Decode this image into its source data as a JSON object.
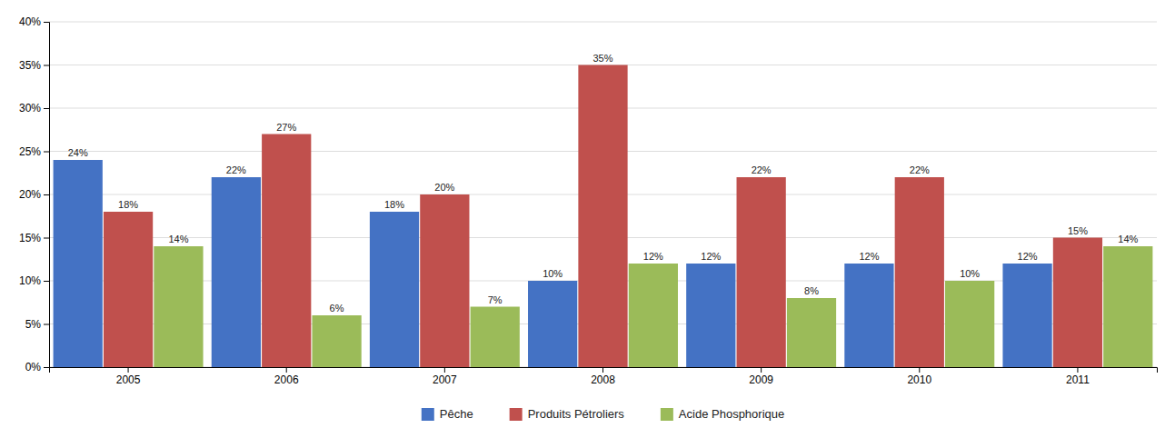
{
  "chart_data": {
    "type": "bar",
    "categories": [
      "2005",
      "2006",
      "2007",
      "2008",
      "2009",
      "2010",
      "2011"
    ],
    "series": [
      {
        "name": "Pêche",
        "color": "#4472C4",
        "values": [
          24,
          22,
          18,
          10,
          12,
          12,
          12
        ],
        "value_labels": [
          "24%",
          "22%",
          "18%",
          "10%",
          "12%",
          "12%",
          "12%"
        ]
      },
      {
        "name": "Produits Pétroliers",
        "color": "#C0504D",
        "values": [
          18,
          27,
          20,
          35,
          22,
          22,
          15
        ],
        "value_labels": [
          "18%",
          "27%",
          "20%",
          "35%",
          "22%",
          "22%",
          "15%"
        ]
      },
      {
        "name": "Acide Phosphorique",
        "color": "#9BBB59",
        "values": [
          14,
          6,
          7,
          12,
          8,
          10,
          14
        ],
        "value_labels": [
          "14%",
          "6%",
          "7%",
          "12%",
          "8%",
          "10%",
          "14%"
        ]
      }
    ],
    "ylim": [
      0,
      40
    ],
    "yticks": [
      {
        "value": 0,
        "label": "0%"
      },
      {
        "value": 5,
        "label": "5%"
      },
      {
        "value": 10,
        "label": "10%"
      },
      {
        "value": 15,
        "label": "15%"
      },
      {
        "value": 20,
        "label": "20%"
      },
      {
        "value": 25,
        "label": "25%"
      },
      {
        "value": 30,
        "label": "30%"
      },
      {
        "value": 35,
        "label": "35%"
      },
      {
        "value": 40,
        "label": "40%"
      }
    ],
    "grid": true,
    "data_labels": true,
    "legend": "bottom"
  }
}
